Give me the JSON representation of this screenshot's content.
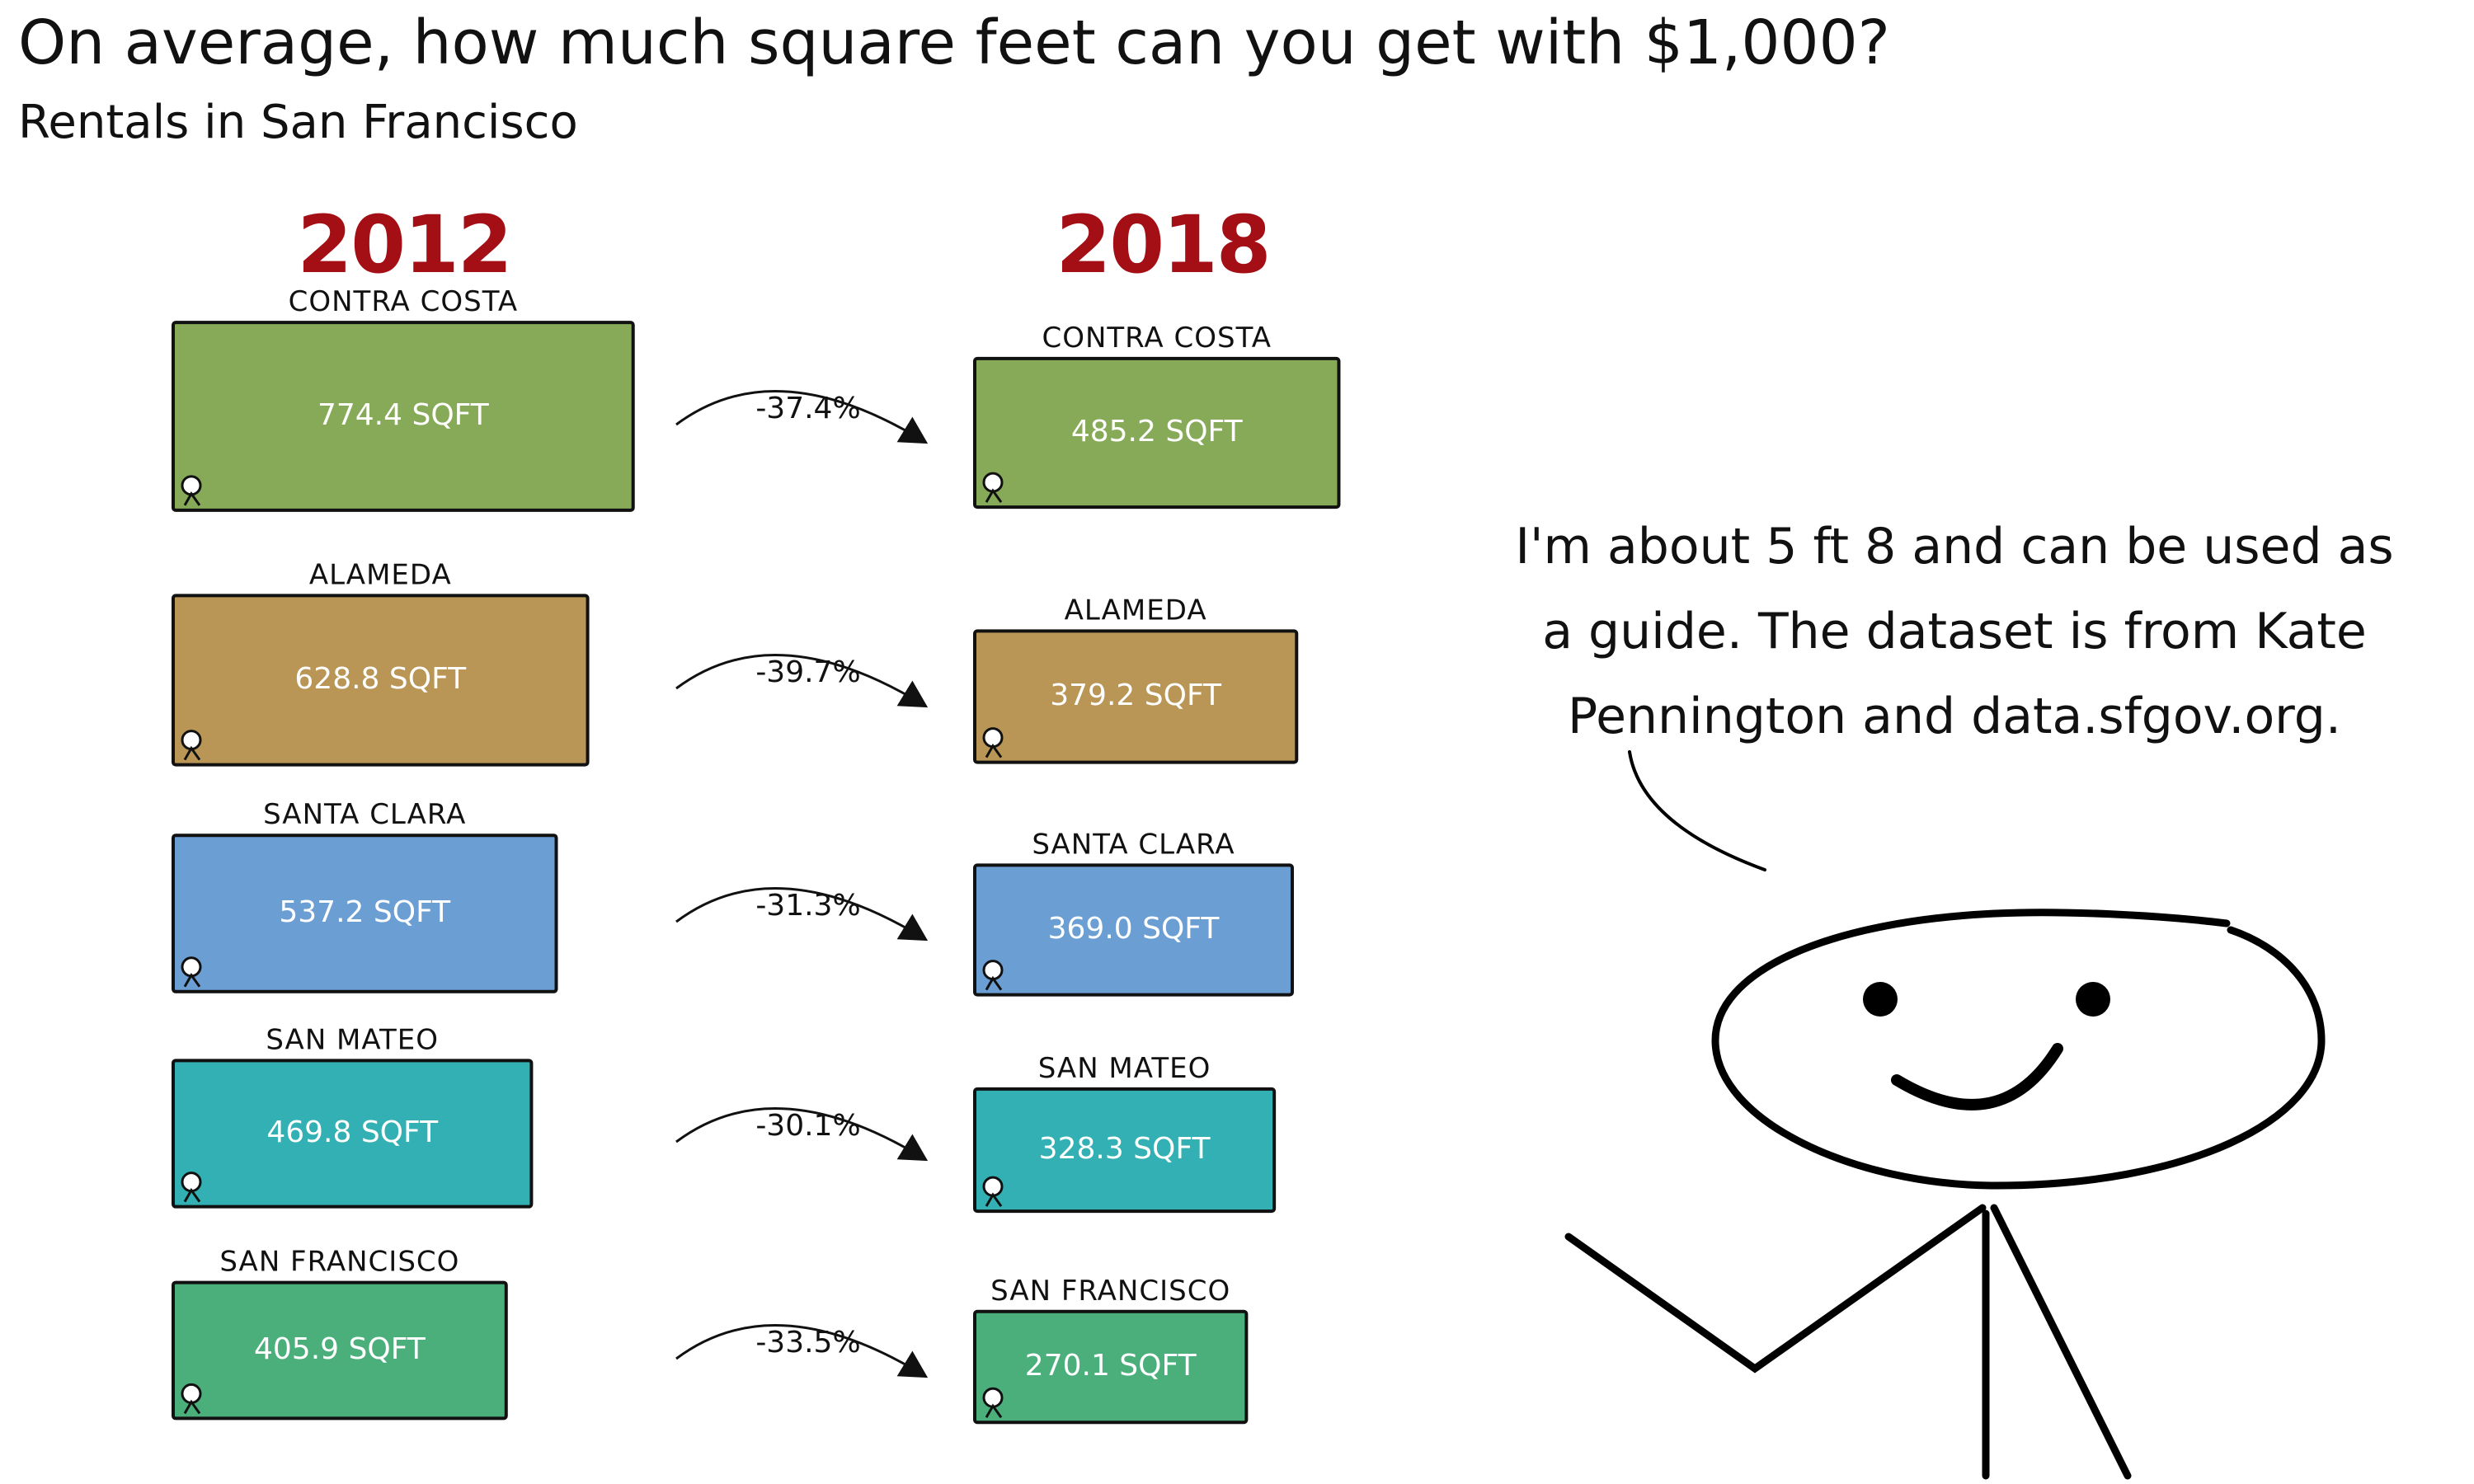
{
  "title": "On average, how much square feet can you get with $1,000?",
  "subtitle": "Rentals in San Francisco",
  "speech": {
    "line1": "I'm about 5 ft 8 and can be used as",
    "line2": "a guide. The dataset is from Kate",
    "line3": "Pennington and data.sfgov.org."
  },
  "chart_data": {
    "type": "bar",
    "title": "On average, how much square feet can you get with $1,000?",
    "subtitle": "Rentals in San Francisco",
    "unit": "SQFT",
    "years": [
      "2012",
      "2018"
    ],
    "categories": [
      "CONTRA COSTA",
      "ALAMEDA",
      "SANTA CLARA",
      "SAN MATEO",
      "SAN FRANCISCO"
    ],
    "series": [
      {
        "name": "2012",
        "values": [
          774.4,
          628.8,
          537.2,
          469.8,
          405.9
        ],
        "labels": [
          "774.4 SQFT",
          "628.8 SQFT",
          "537.2 SQFT",
          "469.8 SQFT",
          "405.9 SQFT"
        ]
      },
      {
        "name": "2018",
        "values": [
          485.2,
          379.2,
          369.0,
          328.3,
          270.1
        ],
        "labels": [
          "485.2 SQFT",
          "379.2 SQFT",
          "369.0 SQFT",
          "328.3 SQFT",
          "270.1 SQFT"
        ]
      }
    ],
    "changes": [
      "-37.4%",
      "-39.7%",
      "-31.3%",
      "-30.1%",
      "-33.5%"
    ],
    "colors": [
      "#86aa58",
      "#b99656",
      "#6b9fd4",
      "#32b0b3",
      "#4baf7c"
    ],
    "year_label_color": "#a40f16"
  }
}
